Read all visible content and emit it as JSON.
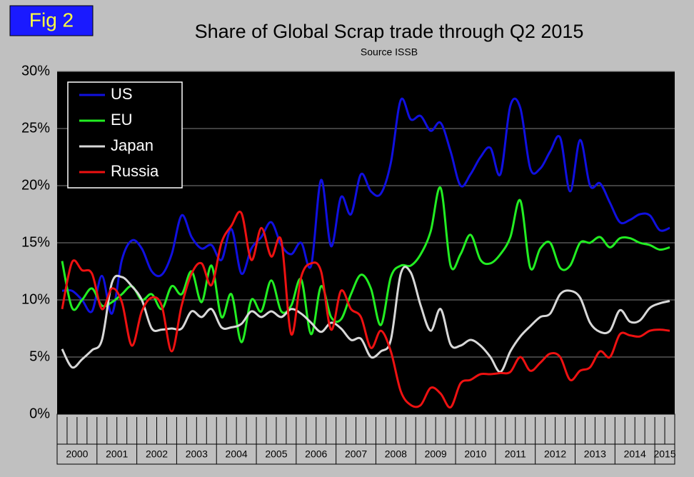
{
  "figure_label": "Fig 2",
  "chart_data": {
    "type": "line",
    "title": "Share of Global Scrap trade through Q2 2015",
    "subtitle": "Source ISSB",
    "year_groups": [
      "2000",
      "2001",
      "2002",
      "2003",
      "2004",
      "2005",
      "2006",
      "2007",
      "2008",
      "2009",
      "2010",
      "2011",
      "2012",
      "2013",
      "2014",
      "2015"
    ],
    "ylim": [
      0,
      30
    ],
    "yticks": [
      {
        "value": 0,
        "label": "0%"
      },
      {
        "value": 5,
        "label": "5%"
      },
      {
        "value": 10,
        "label": "10%"
      },
      {
        "value": 15,
        "label": "15%"
      },
      {
        "value": 20,
        "label": "20%"
      },
      {
        "value": 25,
        "label": "25%"
      },
      {
        "value": 30,
        "label": "30%"
      }
    ],
    "grid": true,
    "legend": "top-left",
    "series": [
      {
        "name": "US",
        "color": "#1010e0",
        "values": [
          10.8,
          10.8,
          10.0,
          9.0,
          12.1,
          8.8,
          13.5,
          15.2,
          14.5,
          12.5,
          12.2,
          14.0,
          17.4,
          15.5,
          14.5,
          14.8,
          13.5,
          16.2,
          12.3,
          14.5,
          15.5,
          16.8,
          14.8,
          14.0,
          15.0,
          13.0,
          20.5,
          14.7,
          19.0,
          17.5,
          21.0,
          19.5,
          19.3,
          22.0,
          27.5,
          25.8,
          26.1,
          24.8,
          25.5,
          23.0,
          20.0,
          21.0,
          22.5,
          23.3,
          21.0,
          27.0,
          26.8,
          21.5,
          21.5,
          23.0,
          24.2,
          19.5,
          24.0,
          20.0,
          20.2,
          18.5,
          16.8,
          17.0,
          17.5,
          17.4,
          16.1,
          16.3
        ]
      },
      {
        "name": "EU",
        "color": "#22ee22",
        "values": [
          13.4,
          9.3,
          10.0,
          11.0,
          9.5,
          9.8,
          10.5,
          11.2,
          10.0,
          10.5,
          9.2,
          11.2,
          10.5,
          12.5,
          9.8,
          13.0,
          8.5,
          10.5,
          6.3,
          10.0,
          9.0,
          11.7,
          9.0,
          9.5,
          11.8,
          7.0,
          11.2,
          8.5,
          8.3,
          10.5,
          12.2,
          11.0,
          7.8,
          12.0,
          13.0,
          13.0,
          14.0,
          16.0,
          19.8,
          13.0,
          14.0,
          15.7,
          13.5,
          13.2,
          14.0,
          15.5,
          18.7,
          12.8,
          14.5,
          15.0,
          12.8,
          13.0,
          15.0,
          15.0,
          15.5,
          14.6,
          15.4,
          15.4,
          15.0,
          14.8,
          14.4,
          14.6
        ]
      },
      {
        "name": "Japan",
        "color": "#d8d8d8",
        "values": [
          5.7,
          4.1,
          4.8,
          5.6,
          6.5,
          11.5,
          12.0,
          11.2,
          10.0,
          7.5,
          7.4,
          7.5,
          7.5,
          9.0,
          8.5,
          9.2,
          7.6,
          7.6,
          7.9,
          9.0,
          8.5,
          9.0,
          8.5,
          9.2,
          8.8,
          8.0,
          7.2,
          8.0,
          7.5,
          6.5,
          6.6,
          5.0,
          5.5,
          6.5,
          12.3,
          12.4,
          9.5,
          7.3,
          9.2,
          6.1,
          6.0,
          6.5,
          6.0,
          5.0,
          3.7,
          5.5,
          6.8,
          7.7,
          8.5,
          8.8,
          10.5,
          10.8,
          10.2,
          8.0,
          7.2,
          7.3,
          9.1,
          8.1,
          8.2,
          9.3,
          9.7,
          9.9
        ]
      },
      {
        "name": "Russia",
        "color": "#ee1111",
        "values": [
          9.2,
          13.3,
          12.6,
          12.3,
          9.2,
          11.0,
          9.8,
          6.0,
          9.0,
          10.2,
          9.5,
          5.5,
          9.5,
          12.3,
          13.2,
          11.3,
          15.0,
          16.5,
          17.6,
          13.5,
          16.3,
          13.8,
          15.2,
          7.0,
          12.0,
          13.2,
          12.5,
          7.4,
          10.8,
          9.2,
          8.5,
          5.8,
          7.3,
          5.5,
          2.0,
          0.8,
          0.8,
          2.3,
          1.8,
          0.6,
          2.7,
          3.0,
          3.5,
          3.5,
          3.6,
          3.7,
          5.0,
          3.8,
          4.5,
          5.3,
          5.0,
          3.0,
          3.8,
          4.1,
          5.5,
          5.0,
          7.0,
          6.9,
          6.8,
          7.3,
          7.4,
          7.3
        ]
      }
    ]
  }
}
